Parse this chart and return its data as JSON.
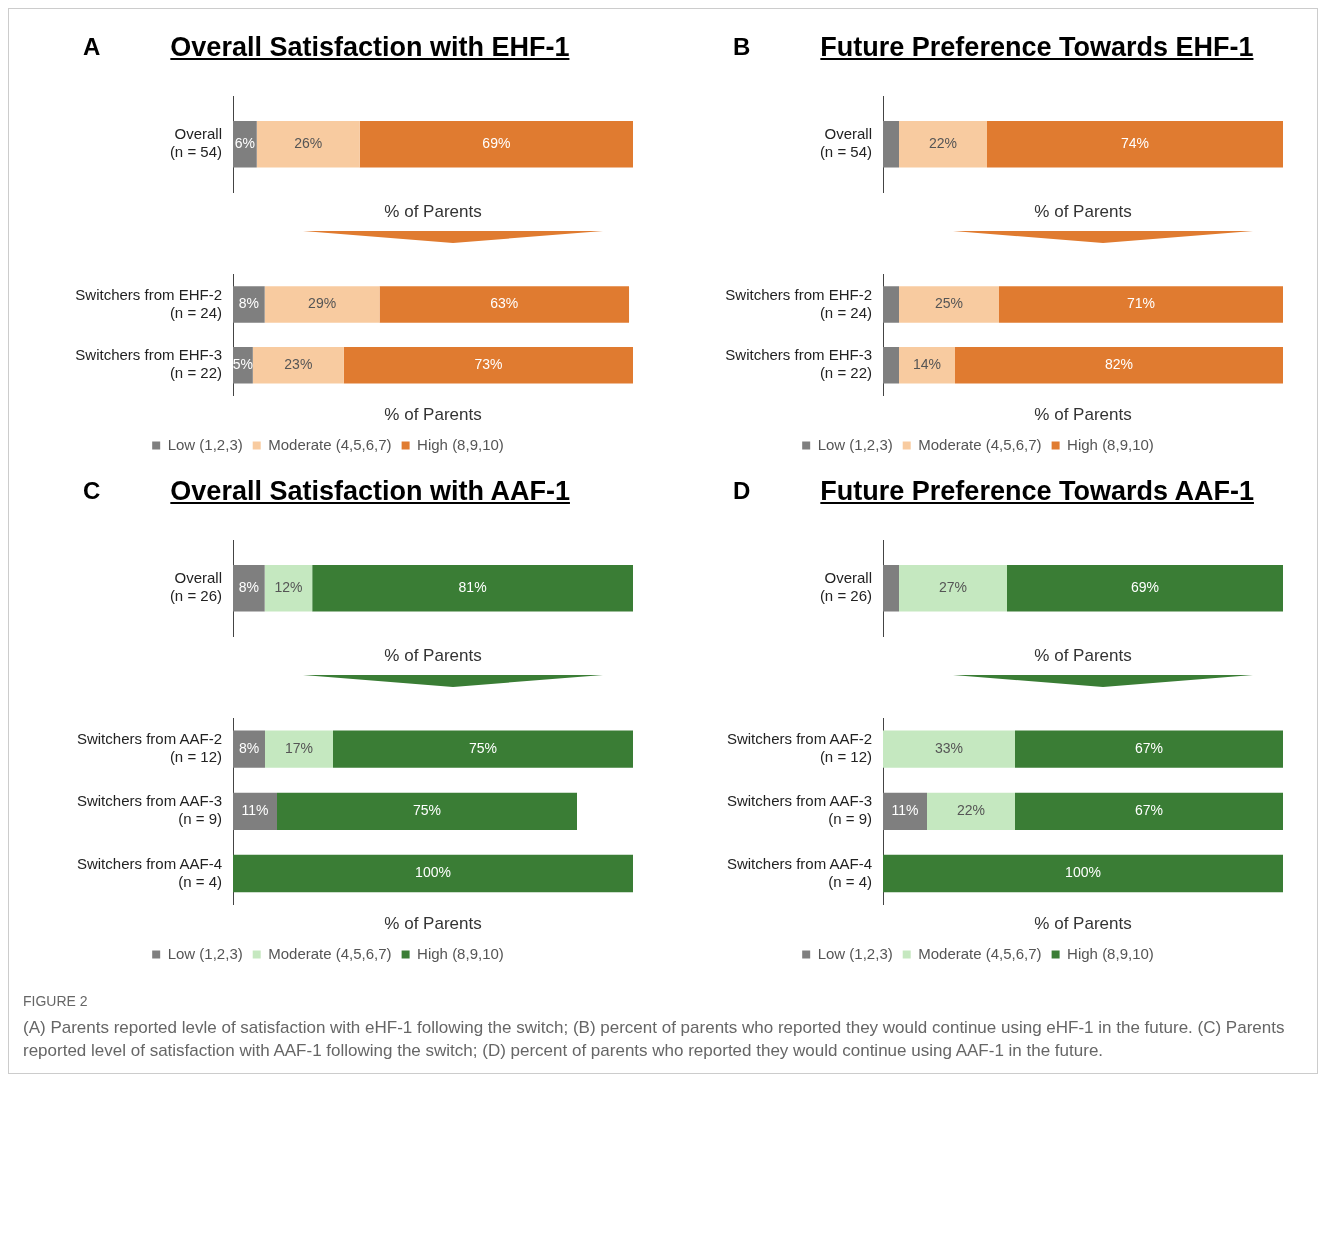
{
  "chart_data": [
    {
      "type": "bar",
      "orientation": "horizontal",
      "stacked": true,
      "title": "Overall Satisfaction with EHF-1",
      "annotations": [
        "A"
      ],
      "categories": [
        "Overall (n = 54)"
      ],
      "xlabel": "% of Parents",
      "series": [
        {
          "color": "#7f7f7f",
          "values": [
            6
          ],
          "value_labels": [
            "6%"
          ]
        },
        {
          "color": "#f8cba0",
          "values": [
            26
          ],
          "value_labels": [
            "26%"
          ]
        },
        {
          "color": "#e07b30",
          "values": [
            69
          ],
          "value_labels": [
            "69%"
          ]
        }
      ]
    },
    {
      "type": "bar",
      "orientation": "horizontal",
      "stacked": true,
      "categories": [
        "Switchers from EHF-2 (n = 24)",
        "Switchers from EHF-3 (n = 22)"
      ],
      "xlabel": "% of Parents",
      "legend": "bottom",
      "series": [
        {
          "name": "Low (1,2,3)",
          "color": "#7f7f7f",
          "values": [
            8,
            5
          ],
          "value_labels": [
            "8%",
            "5%"
          ]
        },
        {
          "name": "Moderate (4,5,6,7)",
          "color": "#f8cba0",
          "values": [
            29,
            23
          ],
          "value_labels": [
            "29%",
            "23%"
          ]
        },
        {
          "name": "High (8,9,10)",
          "color": "#e07b30",
          "values": [
            63,
            73
          ],
          "value_labels": [
            "63%",
            "73%"
          ]
        }
      ]
    },
    {
      "type": "bar",
      "orientation": "horizontal",
      "stacked": true,
      "title": "Future Preference Towards EHF-1",
      "annotations": [
        "B"
      ],
      "categories": [
        "Overall (n = 54)"
      ],
      "xlabel": "% of Parents",
      "series": [
        {
          "color": "#7f7f7f",
          "values": [
            4
          ],
          "value_labels": [
            null
          ]
        },
        {
          "color": "#f8cba0",
          "values": [
            22
          ],
          "value_labels": [
            "22%"
          ]
        },
        {
          "color": "#e07b30",
          "values": [
            74
          ],
          "value_labels": [
            "74%"
          ]
        }
      ]
    },
    {
      "type": "bar",
      "orientation": "horizontal",
      "stacked": true,
      "categories": [
        "Switchers from EHF-2 (n = 24)",
        "Switchers from EHF-3 (n = 22)"
      ],
      "xlabel": "% of Parents",
      "legend": "bottom",
      "series": [
        {
          "name": "Low (1,2,3)",
          "color": "#7f7f7f",
          "values": [
            4,
            4
          ],
          "value_labels": [
            null,
            null
          ]
        },
        {
          "name": "Moderate (4,5,6,7)",
          "color": "#f8cba0",
          "values": [
            25,
            14
          ],
          "value_labels": [
            "25%",
            "14%"
          ]
        },
        {
          "name": "High (8,9,10)",
          "color": "#e07b30",
          "values": [
            71,
            82
          ],
          "value_labels": [
            "71%",
            "82%"
          ]
        }
      ]
    },
    {
      "type": "bar",
      "orientation": "horizontal",
      "stacked": true,
      "title": "Overall Satisfaction with AAF-1",
      "annotations": [
        "C"
      ],
      "categories": [
        "Overall (n = 26)"
      ],
      "xlabel": "% of Parents",
      "series": [
        {
          "color": "#7f7f7f",
          "values": [
            8
          ],
          "value_labels": [
            "8%"
          ]
        },
        {
          "color": "#c5e8c0",
          "values": [
            12
          ],
          "value_labels": [
            "12%"
          ]
        },
        {
          "color": "#3a7d35",
          "values": [
            81
          ],
          "value_labels": [
            "81%"
          ]
        }
      ]
    },
    {
      "type": "bar",
      "orientation": "horizontal",
      "stacked": true,
      "categories": [
        "Switchers from AAF-2 (n = 12)",
        "Switchers from AAF-3 (n = 9)",
        "Switchers from AAF-4 (n = 4)"
      ],
      "xlabel": "% of Parents",
      "legend": "bottom",
      "series": [
        {
          "name": "Low (1,2,3)",
          "color": "#7f7f7f",
          "values": [
            8,
            11,
            null
          ],
          "value_labels": [
            "8%",
            "11%",
            null
          ]
        },
        {
          "name": "Moderate (4,5,6,7)",
          "color": "#c5e8c0",
          "values": [
            17,
            null,
            null
          ],
          "value_labels": [
            "17%",
            null,
            null
          ]
        },
        {
          "name": "High (8,9,10)",
          "color": "#3a7d35",
          "values": [
            75,
            75,
            100
          ],
          "value_labels": [
            "75%",
            "75%",
            "100%"
          ]
        }
      ]
    },
    {
      "type": "bar",
      "orientation": "horizontal",
      "stacked": true,
      "title": "Future Preference Towards AAF-1",
      "annotations": [
        "D"
      ],
      "categories": [
        "Overall (n = 26)"
      ],
      "xlabel": "% of Parents",
      "series": [
        {
          "color": "#7f7f7f",
          "values": [
            4
          ],
          "value_labels": [
            null
          ]
        },
        {
          "color": "#c5e8c0",
          "values": [
            27
          ],
          "value_labels": [
            "27%"
          ]
        },
        {
          "color": "#3a7d35",
          "values": [
            69
          ],
          "value_labels": [
            "69%"
          ]
        }
      ]
    },
    {
      "type": "bar",
      "orientation": "horizontal",
      "stacked": true,
      "categories": [
        "Switchers from AAF-2 (n = 12)",
        "Switchers from AAF-3 (n = 9)",
        "Switchers from AAF-4 (n = 4)"
      ],
      "xlabel": "% of Parents",
      "legend": "bottom",
      "annotations": [
        "FIGURE 2",
        "(A) Parents reported levle of satisfaction with eHF-1 following the switch; (B) percent of parents who reported they would continue using eHF-1 in the future. (C) Parents reported level of satisfaction with AAF-1 following the switch; (D) percent of parents who reported they would continue using AAF-1 in the future."
      ],
      "series": [
        {
          "name": "Low (1,2,3)",
          "color": "#7f7f7f",
          "values": [
            null,
            11,
            null
          ],
          "value_labels": [
            null,
            "11%",
            null
          ]
        },
        {
          "name": "Moderate (4,5,6,7)",
          "color": "#c5e8c0",
          "values": [
            33,
            22,
            null
          ],
          "value_labels": [
            "33%",
            "22%",
            null
          ]
        },
        {
          "name": "High (8,9,10)",
          "color": "#3a7d35",
          "values": [
            67,
            67,
            100
          ],
          "value_labels": [
            "67%",
            "67%",
            "100%"
          ]
        }
      ]
    }
  ]
}
